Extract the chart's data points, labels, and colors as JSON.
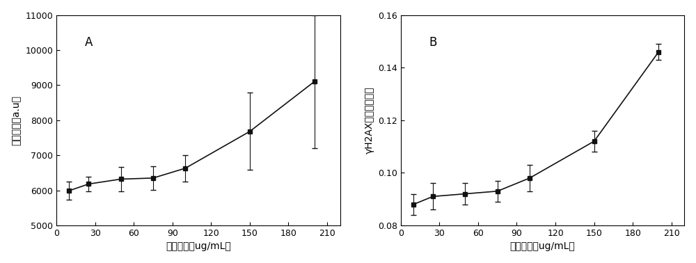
{
  "panel_A": {
    "label": "A",
    "x": [
      10,
      25,
      50,
      75,
      100,
      150,
      200
    ],
    "y": [
      5990,
      6180,
      6320,
      6350,
      6630,
      7680,
      9100
    ],
    "yerr": [
      250,
      200,
      350,
      330,
      380,
      1100,
      1900
    ],
    "xlabel": "染毒剂量（ug/mL）",
    "ylabel": "荧光强度（a.u）",
    "ylim": [
      5000,
      11000
    ],
    "xlim": [
      0,
      220
    ],
    "yticks": [
      5000,
      6000,
      7000,
      8000,
      9000,
      10000,
      11000
    ],
    "xticks": [
      0,
      30,
      60,
      90,
      120,
      150,
      180,
      210
    ],
    "fit_p0": [
      100,
      0.015,
      5800
    ]
  },
  "panel_B": {
    "label": "B",
    "x": [
      10,
      25,
      50,
      75,
      100,
      150,
      200
    ],
    "y": [
      0.088,
      0.091,
      0.092,
      0.093,
      0.098,
      0.112,
      0.146
    ],
    "yerr": [
      0.004,
      0.005,
      0.004,
      0.004,
      0.005,
      0.004,
      0.003
    ],
    "xlabel": "染毒剂量（ug/mL）",
    "ylabel": "γH2AX荧光强度比値",
    "ylim": [
      0.08,
      0.16
    ],
    "xlim": [
      0,
      220
    ],
    "yticks": [
      0.08,
      0.1,
      0.12,
      0.14,
      0.16
    ],
    "xticks": [
      0,
      30,
      60,
      90,
      120,
      150,
      180,
      210
    ],
    "fit_p0": [
      0.001,
      0.02,
      0.082
    ]
  },
  "marker": "s",
  "markersize": 5,
  "marker_color": "#111111",
  "line_color": "#111111",
  "line_width": 1.2,
  "capsize": 3,
  "ecolor": "#111111",
  "background_color": "#ffffff",
  "font_size_label": 10,
  "font_size_tick": 9,
  "font_size_panel": 12
}
